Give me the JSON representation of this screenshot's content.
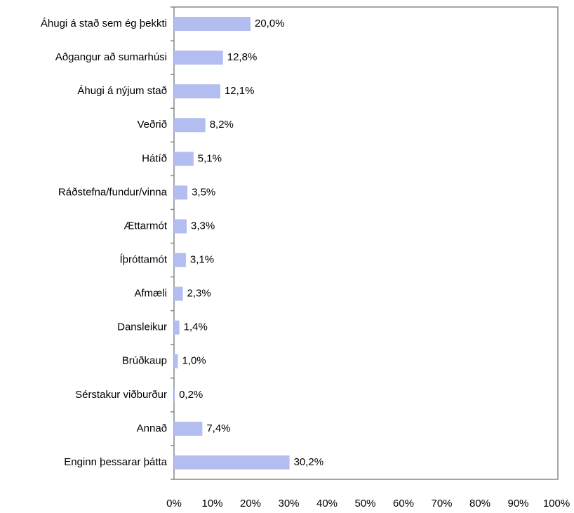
{
  "chart_data": {
    "type": "bar",
    "orientation": "horizontal",
    "categories": [
      "Áhugi á stað sem ég þekkti",
      "Aðgangur að sumarhúsi",
      "Áhugi á nýjum stað",
      "Veðrið",
      "Hátíð",
      "Ráðstefna/fundur/vinna",
      "Ættarmót",
      "Íþróttamót",
      "Afmæli",
      "Dansleikur",
      "Brúðkaup",
      "Sérstakur viðburður",
      "Annað",
      "Enginn þessarar þátta"
    ],
    "values": [
      20.0,
      12.8,
      12.1,
      8.2,
      5.1,
      3.5,
      3.3,
      3.1,
      2.3,
      1.4,
      1.0,
      0.2,
      7.4,
      30.2
    ],
    "value_labels": [
      "20,0%",
      "12,8%",
      "12,1%",
      "8,2%",
      "5,1%",
      "3,5%",
      "3,3%",
      "3,1%",
      "2,3%",
      "1,4%",
      "1,0%",
      "0,2%",
      "7,4%",
      "30,2%"
    ],
    "color": "#b3bdf0",
    "xlim": [
      0,
      100
    ],
    "xticks": [
      {
        "value": 0,
        "label": "0%"
      },
      {
        "value": 10,
        "label": "10%"
      },
      {
        "value": 20,
        "label": "20%"
      },
      {
        "value": 30,
        "label": "30%"
      },
      {
        "value": 40,
        "label": "40%"
      },
      {
        "value": 50,
        "label": "50%"
      },
      {
        "value": 60,
        "label": "60%"
      },
      {
        "value": 70,
        "label": "70%"
      },
      {
        "value": 80,
        "label": "80%"
      },
      {
        "value": 90,
        "label": "90%"
      },
      {
        "value": 100,
        "label": "100%"
      }
    ],
    "grid": false
  }
}
